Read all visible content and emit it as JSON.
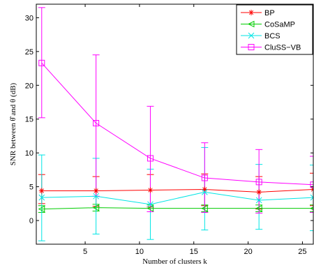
{
  "chart_data": {
    "type": "line",
    "xlabel": "Number of clusters k",
    "ylabel": "SNR between θ̂ and θ (dB)",
    "xlim": [
      0.5,
      26
    ],
    "ylim": [
      -3.5,
      32
    ],
    "x_ticks": [
      5,
      10,
      15,
      20,
      25
    ],
    "y_ticks": [
      0,
      5,
      10,
      15,
      20,
      25,
      30
    ],
    "legend_position": "top-right",
    "grid": false,
    "series": [
      {
        "name": "BP",
        "color": "#ff0000",
        "marker": "asterisk",
        "x": [
          1,
          6,
          11,
          16,
          21,
          26
        ],
        "y": [
          4.4,
          4.4,
          4.5,
          4.6,
          4.2,
          4.6
        ],
        "err_low": [
          2.5,
          2.1,
          2.0,
          2.2,
          1.7,
          2.2
        ],
        "err_high": [
          6.8,
          6.5,
          6.8,
          6.9,
          6.5,
          7.0
        ]
      },
      {
        "name": "CoSaMP",
        "color": "#00cc00",
        "marker": "triangle-left",
        "x": [
          1,
          6,
          11,
          16,
          21,
          26
        ],
        "y": [
          1.7,
          1.9,
          1.8,
          1.8,
          1.8,
          1.8
        ],
        "err_low": [
          1.2,
          1.4,
          1.3,
          1.3,
          1.3,
          1.3
        ],
        "err_high": [
          2.2,
          2.4,
          2.3,
          2.3,
          2.3,
          2.3
        ]
      },
      {
        "name": "BCS",
        "color": "#00e5e5",
        "marker": "x",
        "x": [
          1,
          6,
          11,
          16,
          21,
          26
        ],
        "y": [
          3.4,
          3.6,
          2.4,
          4.2,
          3.0,
          3.4
        ],
        "err_low": [
          -3.0,
          -2.0,
          -2.8,
          -1.4,
          -1.3,
          -1.5
        ],
        "err_high": [
          9.7,
          9.2,
          7.6,
          10.8,
          8.3,
          8.2
        ]
      },
      {
        "name": "CluSS−VB",
        "color": "#ff00ff",
        "marker": "square",
        "x": [
          1,
          6,
          11,
          16,
          21,
          26
        ],
        "y": [
          23.3,
          14.4,
          9.2,
          6.3,
          5.7,
          5.3
        ],
        "err_low": [
          15.2,
          3.6,
          1.3,
          1.2,
          1.1,
          1.2
        ],
        "err_high": [
          31.5,
          24.5,
          16.9,
          11.5,
          10.5,
          9.5
        ]
      }
    ]
  }
}
